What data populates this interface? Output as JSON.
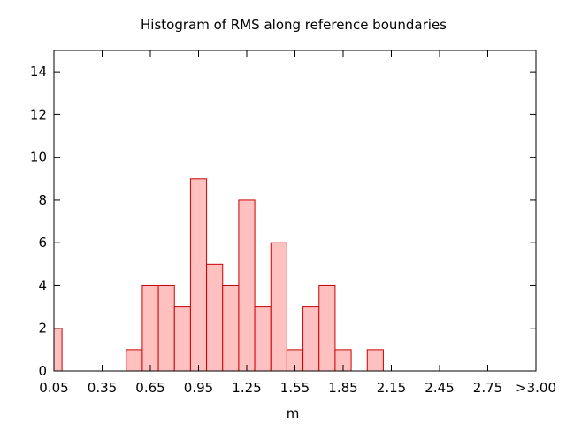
{
  "chart_data": {
    "type": "bar",
    "title": "Histogram of RMS along reference boundaries",
    "xlabel": "m",
    "ylabel": "",
    "bin_width": 0.1,
    "bars": [
      {
        "x": 0.05,
        "count": 2
      },
      {
        "x": 0.15,
        "count": 0
      },
      {
        "x": 0.25,
        "count": 0
      },
      {
        "x": 0.35,
        "count": 0
      },
      {
        "x": 0.45,
        "count": 0
      },
      {
        "x": 0.55,
        "count": 1
      },
      {
        "x": 0.65,
        "count": 4
      },
      {
        "x": 0.75,
        "count": 4
      },
      {
        "x": 0.85,
        "count": 3
      },
      {
        "x": 0.95,
        "count": 9
      },
      {
        "x": 1.05,
        "count": 5
      },
      {
        "x": 1.15,
        "count": 4
      },
      {
        "x": 1.25,
        "count": 8
      },
      {
        "x": 1.35,
        "count": 3
      },
      {
        "x": 1.45,
        "count": 6
      },
      {
        "x": 1.55,
        "count": 1
      },
      {
        "x": 1.65,
        "count": 3
      },
      {
        "x": 1.75,
        "count": 4
      },
      {
        "x": 1.85,
        "count": 1
      },
      {
        "x": 1.95,
        "count": 0
      },
      {
        "x": 2.05,
        "count": 1
      }
    ],
    "xlim": [
      0.05,
      3.05
    ],
    "xticks": [
      {
        "x": 0.05,
        "label": "0.05"
      },
      {
        "x": 0.35,
        "label": "0.35"
      },
      {
        "x": 0.65,
        "label": "0.65"
      },
      {
        "x": 0.95,
        "label": "0.95"
      },
      {
        "x": 1.25,
        "label": "1.25"
      },
      {
        "x": 1.55,
        "label": "1.55"
      },
      {
        "x": 1.85,
        "label": "1.85"
      },
      {
        "x": 2.15,
        "label": "2.15"
      },
      {
        "x": 2.45,
        "label": "2.45"
      },
      {
        "x": 2.75,
        "label": "2.75"
      },
      {
        "x": 3.05,
        "label": ">3.00"
      }
    ],
    "ylim": [
      0,
      15
    ],
    "yticks": [
      {
        "y": 0,
        "label": "0"
      },
      {
        "y": 2,
        "label": "2"
      },
      {
        "y": 4,
        "label": "4"
      },
      {
        "y": 6,
        "label": "6"
      },
      {
        "y": 8,
        "label": "8"
      },
      {
        "y": 10,
        "label": "10"
      },
      {
        "y": 12,
        "label": "12"
      },
      {
        "y": 14,
        "label": "14"
      }
    ],
    "grid": false,
    "legend": "none",
    "colors": {
      "bar_fill": "#ffc0c0",
      "bar_stroke": "#cc0000",
      "axis": "#000000"
    }
  }
}
